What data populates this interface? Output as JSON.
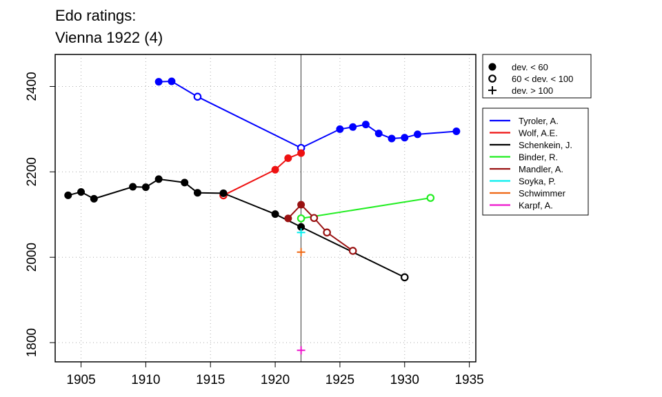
{
  "chart_data": {
    "type": "line",
    "title": [
      "Edo ratings:",
      "Vienna 1922 (4)"
    ],
    "xlabel": "",
    "ylabel": "",
    "xlim": [
      1903,
      1935.5
    ],
    "ylim": [
      1755,
      2475
    ],
    "x_ticks": [
      1905,
      1910,
      1915,
      1920,
      1925,
      1930,
      1935
    ],
    "y_ticks": [
      1800,
      2000,
      2200,
      2400
    ],
    "grid": true,
    "reference_line_x": 1922,
    "marker_legend": [
      {
        "marker": "filled",
        "label": "dev. < 60"
      },
      {
        "marker": "open",
        "label": "60 < dev. < 100"
      },
      {
        "marker": "plus",
        "label": "dev. > 100"
      }
    ],
    "legend_position": "right",
    "series": [
      {
        "name": "Tyroler, A.",
        "color": "#0000ff",
        "points": [
          [
            1911,
            2411,
            "filled"
          ],
          [
            1912,
            2412,
            "filled"
          ],
          [
            1914,
            2376,
            "open"
          ],
          [
            1922,
            2256,
            "open"
          ],
          [
            1925,
            2300,
            "filled"
          ],
          [
            1926,
            2305,
            "filled"
          ],
          [
            1927,
            2311,
            "filled"
          ],
          [
            1928,
            2290,
            "filled"
          ],
          [
            1929,
            2278,
            "filled"
          ],
          [
            1930,
            2280,
            "filled"
          ],
          [
            1931,
            2288,
            "filled"
          ],
          [
            1934,
            2295,
            "filled"
          ]
        ]
      },
      {
        "name": "Wolf, A.E.",
        "color": "#ee1111",
        "points": [
          [
            1916,
            2145,
            "open"
          ],
          [
            1920,
            2205,
            "filled"
          ],
          [
            1921,
            2232,
            "filled"
          ],
          [
            1922,
            2244,
            "filled"
          ]
        ]
      },
      {
        "name": "Schenkein, J.",
        "color": "#000000",
        "points": [
          [
            1904,
            2145,
            "filled"
          ],
          [
            1905,
            2153,
            "filled"
          ],
          [
            1906,
            2137,
            "filled"
          ],
          [
            1909,
            2165,
            "filled"
          ],
          [
            1910,
            2164,
            "filled"
          ],
          [
            1911,
            2183,
            "filled"
          ],
          [
            1913,
            2175,
            "filled"
          ],
          [
            1914,
            2151,
            "filled"
          ],
          [
            1916,
            2150,
            "filled"
          ],
          [
            1920,
            2101,
            "filled"
          ],
          [
            1922,
            2071,
            "filled"
          ],
          [
            1930,
            1953,
            "open"
          ]
        ]
      },
      {
        "name": "Binder, R.",
        "color": "#22ee22",
        "points": [
          [
            1922,
            2091,
            "open"
          ],
          [
            1932,
            2139,
            "open"
          ]
        ]
      },
      {
        "name": "Mandler, A.",
        "color": "#991111",
        "points": [
          [
            1921,
            2091,
            "filled"
          ],
          [
            1922,
            2123,
            "filled"
          ],
          [
            1923,
            2092,
            "open"
          ],
          [
            1924,
            2058,
            "open"
          ],
          [
            1926,
            2015,
            "open"
          ]
        ]
      },
      {
        "name": "Soyka, P.",
        "color": "#00eeee",
        "points": [
          [
            1922,
            2058,
            "plus"
          ]
        ]
      },
      {
        "name": "Schwimmer",
        "color": "#ee6611",
        "points": [
          [
            1922,
            2012,
            "plus"
          ]
        ]
      },
      {
        "name": "Karpf, A.",
        "color": "#ee11cc",
        "points": [
          [
            1922,
            1782,
            "plus"
          ]
        ]
      }
    ]
  }
}
